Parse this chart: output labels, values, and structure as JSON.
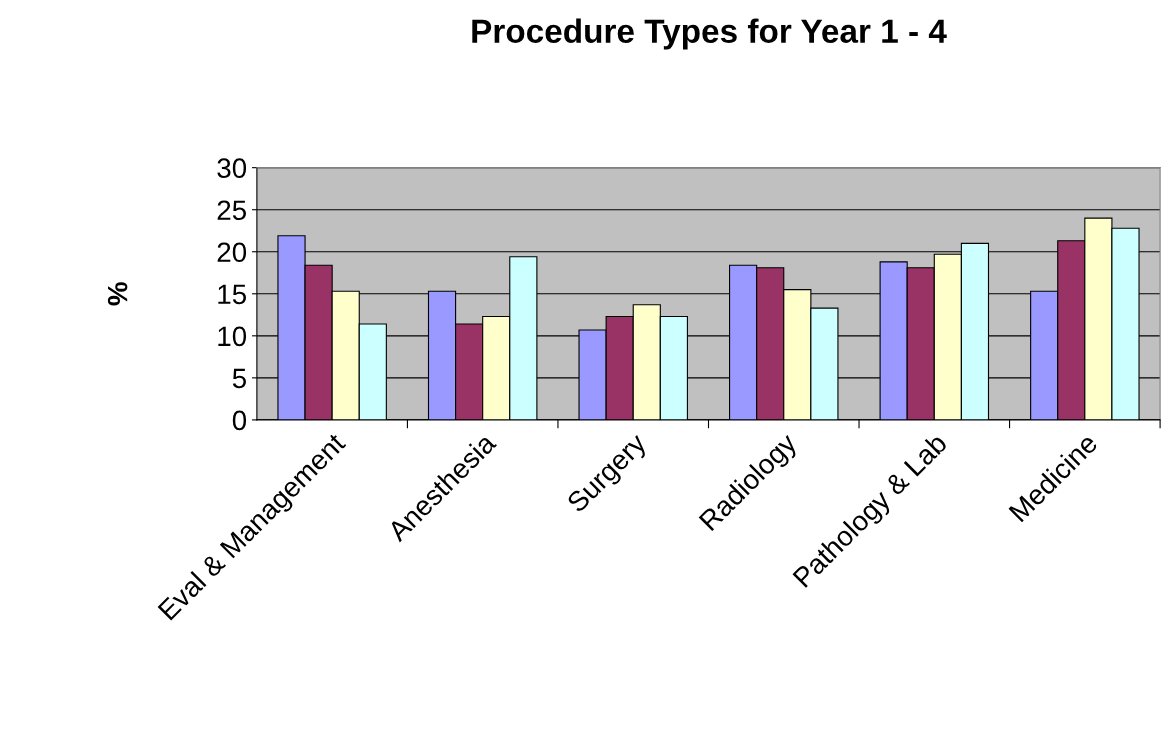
{
  "chart_data": {
    "type": "bar",
    "title": "Procedure Types for Year 1 - 4",
    "ylabel": "%",
    "categories": [
      "Eval & Management",
      "Anesthesia",
      "Surgery",
      "Radiology",
      "Pathology & Lab",
      "Medicine"
    ],
    "series": [
      {
        "color": "#9999ff",
        "values": [
          21.9,
          15.3,
          10.7,
          18.4,
          18.8,
          15.3
        ]
      },
      {
        "color": "#993366",
        "values": [
          18.4,
          11.4,
          12.3,
          18.1,
          18.1,
          21.3
        ]
      },
      {
        "color": "#ffffcc",
        "values": [
          15.3,
          12.3,
          13.7,
          15.5,
          19.7,
          24.0
        ]
      },
      {
        "color": "#ccffff",
        "values": [
          11.4,
          19.4,
          12.3,
          13.3,
          21.0,
          22.8
        ]
      }
    ],
    "ylim": [
      0,
      30
    ],
    "yticks": [
      0,
      5,
      10,
      15,
      20,
      25,
      30
    ],
    "grid": "y",
    "legend": false
  }
}
